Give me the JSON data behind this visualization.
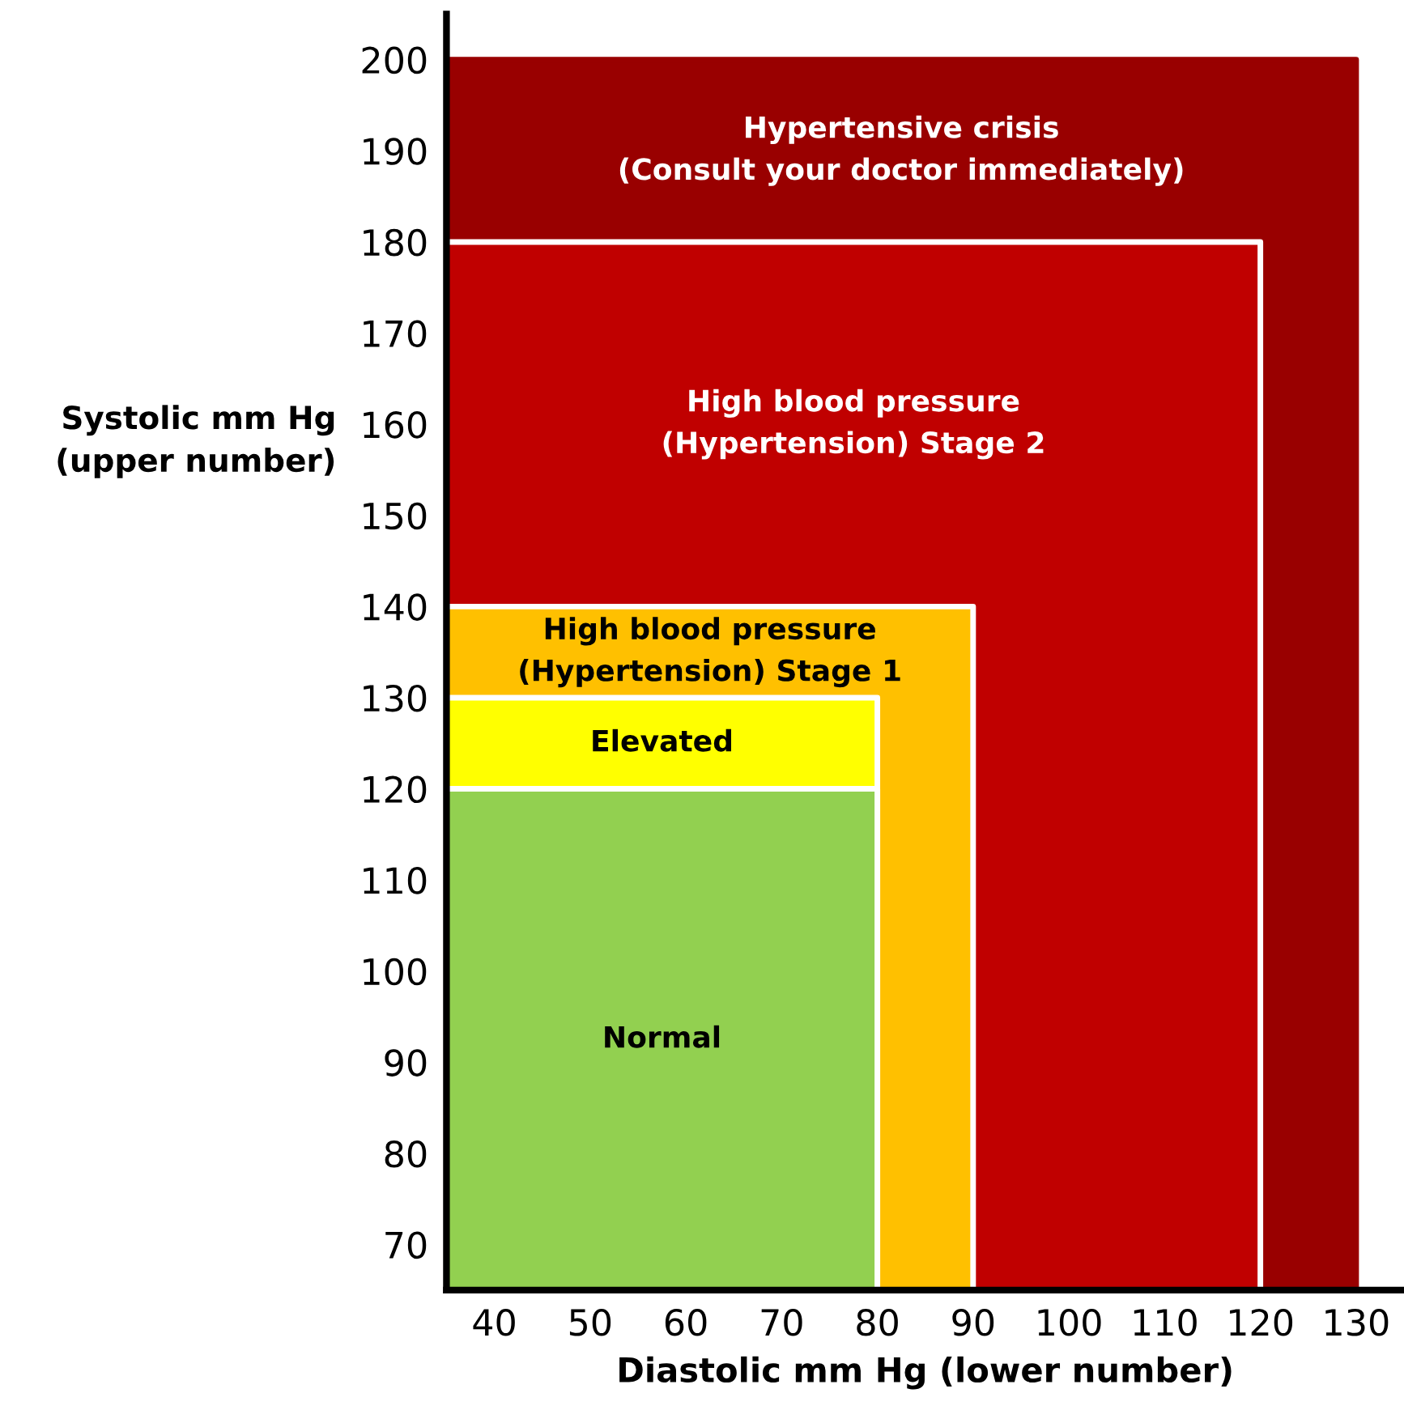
{
  "chart_data": {
    "type": "area",
    "xlabel": "Diastolic mm Hg (lower number)",
    "ylabel": "Systolic mm Hg\n(upper number)",
    "series": [
      {
        "name": "Hypertensive crisis\n(Consult your doctor immediately)",
        "color": "#990000",
        "x": [
          35,
          130
        ],
        "values": [
          200,
          200
        ]
      },
      {
        "name": "High blood pressure\n(Hypertension) Stage 2",
        "color": "#c00000",
        "x": [
          35,
          120
        ],
        "values": [
          180,
          180
        ]
      },
      {
        "name": "High blood pressure\n(Hypertension) Stage 1",
        "color": "#ffc000",
        "x": [
          35,
          90
        ],
        "values": [
          140,
          140
        ]
      },
      {
        "name": "Elevated",
        "color": "#ffff00",
        "x": [
          35,
          80
        ],
        "values": [
          130,
          130
        ]
      },
      {
        "name": "Normal",
        "color": "#92d050",
        "x": [
          35,
          80
        ],
        "values": [
          120,
          120
        ]
      }
    ],
    "xlim": [
      35,
      135
    ],
    "ylim": [
      65,
      205
    ],
    "xticks": [
      40,
      50,
      60,
      70,
      80,
      90,
      100,
      110,
      120,
      130
    ],
    "yticks": [
      70,
      80,
      90,
      100,
      110,
      120,
      130,
      140,
      150,
      160,
      170,
      180,
      190,
      200
    ],
    "grid": false,
    "legend": false
  }
}
